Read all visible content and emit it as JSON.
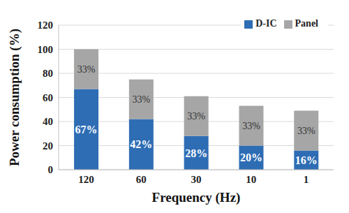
{
  "chart_data": {
    "type": "bar",
    "x_label": "Frequency (Hz)",
    "y_label": "Power consumption (%)",
    "categories": [
      "120",
      "60",
      "30",
      "10",
      "1"
    ],
    "series": [
      {
        "name": "D-IC",
        "color": "#2e6db4",
        "values": [
          67,
          42,
          28,
          20,
          16
        ],
        "value_labels": [
          "67%",
          "42%",
          "28%",
          "20%",
          "16%"
        ]
      },
      {
        "name": "Panel",
        "color": "#a6a6a6",
        "values": [
          33,
          33,
          33,
          33,
          33
        ],
        "value_labels": [
          "33%",
          "33%",
          "33%",
          "33%",
          "33%"
        ]
      }
    ],
    "stacked": true,
    "data_labels": true,
    "legend": "upper right",
    "grid": true,
    "ylim": [
      0,
      120
    ],
    "yticks": [
      0,
      20,
      40,
      60,
      80,
      100,
      120
    ]
  }
}
